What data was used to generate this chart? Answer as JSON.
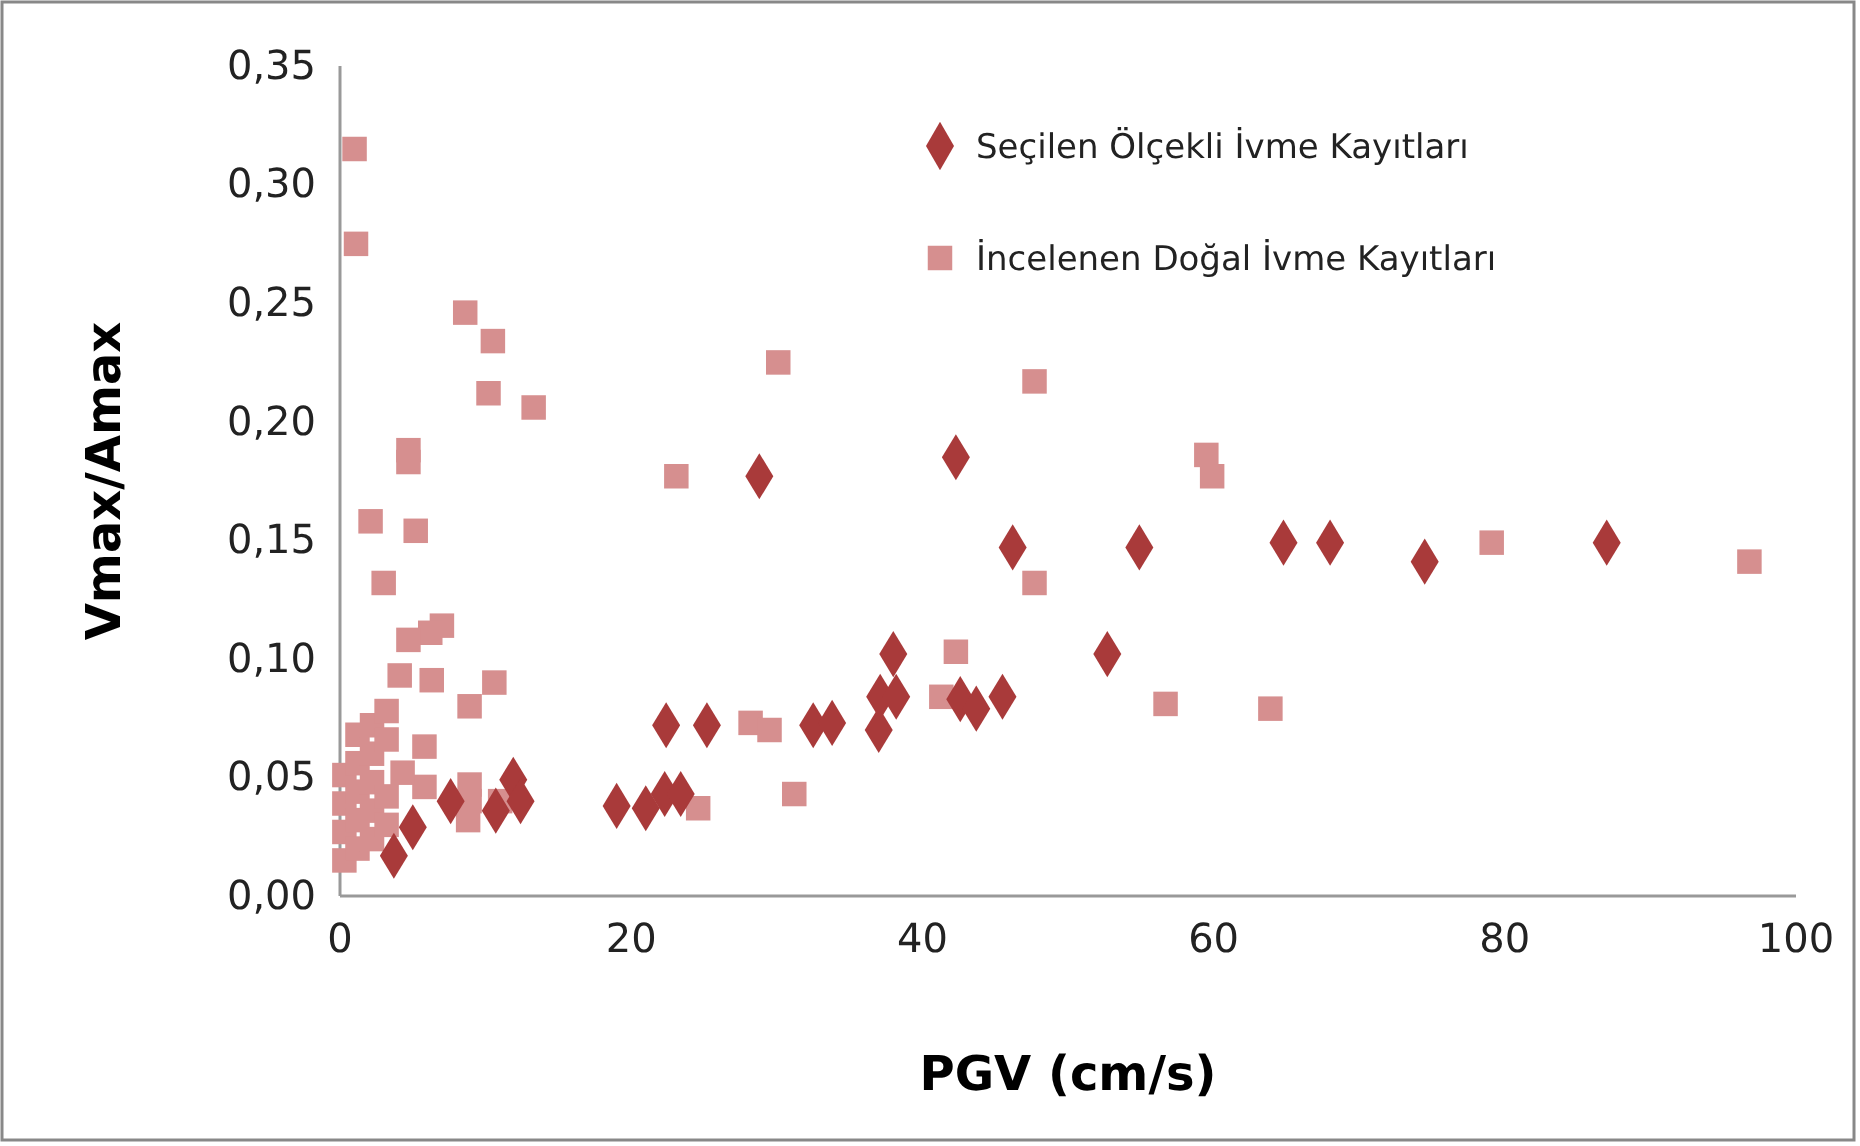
{
  "chart_data": {
    "type": "scatter",
    "xlabel": "PGV (cm/s)",
    "ylabel": "Vmax/Amax",
    "xlim": [
      0,
      100
    ],
    "xticks": [
      0,
      20,
      40,
      60,
      80,
      100
    ],
    "ylim": [
      0,
      0.35
    ],
    "yticks": [
      {
        "value": 0,
        "label": "0,00"
      },
      {
        "value": 0.05,
        "label": "0,05"
      },
      {
        "value": 0.1,
        "label": "0,10"
      },
      {
        "value": 0.15,
        "label": "0,15"
      },
      {
        "value": 0.2,
        "label": "0,20"
      },
      {
        "value": 0.25,
        "label": "0,25"
      },
      {
        "value": 0.3,
        "label": "0,30"
      },
      {
        "value": 0.35,
        "label": "0,35"
      }
    ],
    "grid": false,
    "legend": "top right",
    "series": [
      {
        "name": "Seçilen Ölçekli İvme Kayıtları",
        "color": "#a93a3a",
        "marker": "diamond",
        "x": [
          3.7,
          5.0,
          7.6,
          10.7,
          11.9,
          12.4,
          19.0,
          21.0,
          22.3,
          23.4,
          22.4,
          25.2,
          28.8,
          32.5,
          33.8,
          37.0,
          37.1,
          38.2,
          38.0,
          42.3,
          42.6,
          43.7,
          45.5,
          46.2,
          52.7,
          54.9,
          64.8,
          68.0,
          74.5,
          87.0
        ],
        "values": [
          0.017,
          0.029,
          0.04,
          0.036,
          0.049,
          0.04,
          0.038,
          0.037,
          0.043,
          0.043,
          0.072,
          0.072,
          0.177,
          0.072,
          0.073,
          0.07,
          0.084,
          0.084,
          0.102,
          0.185,
          0.083,
          0.079,
          0.084,
          0.147,
          0.102,
          0.147,
          0.149,
          0.149,
          0.141,
          0.149
        ]
      },
      {
        "name": "İncelenen Doğal İvme Kayıtları",
        "color": "#d68f8f",
        "marker": "square",
        "x": [
          1.0,
          1.1,
          8.6,
          10.5,
          10.2,
          13.3,
          4.7,
          4.7,
          2.1,
          5.2,
          3.0,
          7.0,
          6.2,
          4.7,
          10.6,
          8.9,
          6.3,
          4.1,
          8.9,
          8.9,
          8.8,
          11.0,
          5.8,
          5.8,
          0.3,
          0.3,
          0.3,
          0.3,
          1.2,
          1.2,
          1.2,
          1.2,
          1.2,
          2.2,
          2.2,
          2.2,
          2.2,
          2.2,
          3.2,
          3.2,
          3.2,
          3.2,
          4.3,
          30.1,
          23.1,
          47.7,
          59.5,
          59.9,
          47.7,
          42.3,
          41.3,
          28.2,
          29.5,
          31.2,
          24.6,
          56.7,
          63.9,
          79.1,
          96.8
        ],
        "values": [
          0.315,
          0.275,
          0.246,
          0.234,
          0.212,
          0.206,
          0.188,
          0.183,
          0.158,
          0.154,
          0.132,
          0.114,
          0.111,
          0.108,
          0.09,
          0.08,
          0.091,
          0.093,
          0.047,
          0.04,
          0.032,
          0.04,
          0.063,
          0.046,
          0.015,
          0.027,
          0.039,
          0.051,
          0.02,
          0.032,
          0.044,
          0.056,
          0.068,
          0.024,
          0.036,
          0.048,
          0.06,
          0.072,
          0.03,
          0.042,
          0.066,
          0.078,
          0.052,
          0.225,
          0.177,
          0.217,
          0.186,
          0.177,
          0.132,
          0.103,
          0.084,
          0.073,
          0.07,
          0.043,
          0.037,
          0.081,
          0.079,
          0.149,
          0.141
        ]
      }
    ]
  }
}
